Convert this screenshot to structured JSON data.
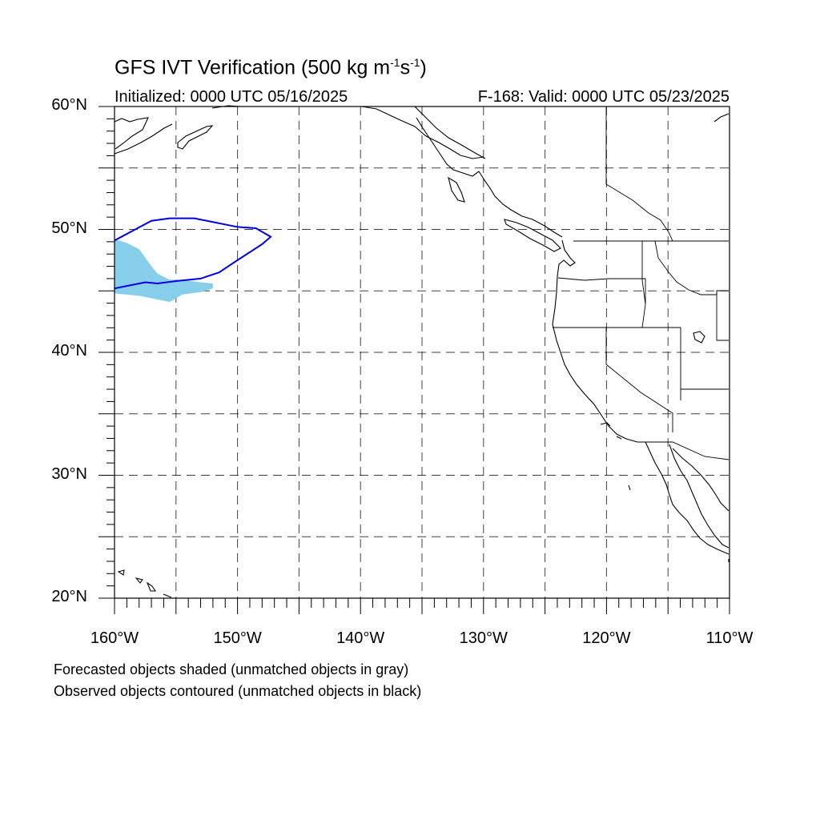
{
  "title": {
    "main": "GFS IVT Verification (500 kg m",
    "sup1": "-1",
    "mid": "s",
    "sup2": "-1",
    "end": ")"
  },
  "init_label": "Initialized: 0000 UTC 05/16/2025",
  "valid_label": "F-168: Valid: 0000 UTC 05/23/2025",
  "lat_labels": [
    {
      "lat": 60,
      "text": "60°N"
    },
    {
      "lat": 50,
      "text": "50°N"
    },
    {
      "lat": 40,
      "text": "40°N"
    },
    {
      "lat": 30,
      "text": "30°N"
    },
    {
      "lat": 20,
      "text": "20°N"
    }
  ],
  "lon_labels": [
    {
      "lon": -160,
      "text": "160°W"
    },
    {
      "lon": -150,
      "text": "150°W"
    },
    {
      "lon": -140,
      "text": "140°W"
    },
    {
      "lon": -130,
      "text": "130°W"
    },
    {
      "lon": -120,
      "text": "120°W"
    },
    {
      "lon": -110,
      "text": "110°W"
    }
  ],
  "notes": [
    "Forecasted objects shaded (unmatched objects in gray)",
    "Observed objects contoured (unmatched objects in black)"
  ],
  "colors": {
    "forecast_fill": "#87ceeb",
    "observed_contour": "#0000dd",
    "coast": "#000000",
    "grid": "#000000"
  },
  "map": {
    "lon_min": -160,
    "lon_max": -110,
    "lat_min": 20,
    "lat_max": 60,
    "grid_step_deg": 5,
    "grid_style": "dashed"
  },
  "forecast_object": [
    [
      -160,
      49.2
    ],
    [
      -159,
      48.9
    ],
    [
      -158,
      48.4
    ],
    [
      -157.5,
      47.7
    ],
    [
      -157,
      47.0
    ],
    [
      -156.5,
      46.4
    ],
    [
      -155.5,
      45.9
    ],
    [
      -154.5,
      45.9
    ],
    [
      -153,
      45.7
    ],
    [
      -152,
      45.6
    ],
    [
      -152,
      45.2
    ],
    [
      -153,
      44.9
    ],
    [
      -154.5,
      44.7
    ],
    [
      -155.5,
      44.1
    ],
    [
      -156.5,
      44.3
    ],
    [
      -158,
      44.6
    ],
    [
      -160,
      44.8
    ]
  ],
  "observed_object": [
    [
      -160,
      49.1
    ],
    [
      -158.5,
      49.9
    ],
    [
      -157,
      50.7
    ],
    [
      -155.5,
      50.9
    ],
    [
      -153.5,
      50.9
    ],
    [
      -152,
      50.6
    ],
    [
      -150,
      50.2
    ],
    [
      -148.5,
      50.1
    ],
    [
      -147.3,
      49.4
    ],
    [
      -148,
      48.8
    ],
    [
      -150,
      47.5
    ],
    [
      -151.5,
      46.5
    ],
    [
      -153,
      46.0
    ],
    [
      -155,
      45.8
    ],
    [
      -156.5,
      45.6
    ],
    [
      -157.5,
      45.7
    ],
    [
      -159,
      45.4
    ],
    [
      -160,
      45.2
    ]
  ]
}
